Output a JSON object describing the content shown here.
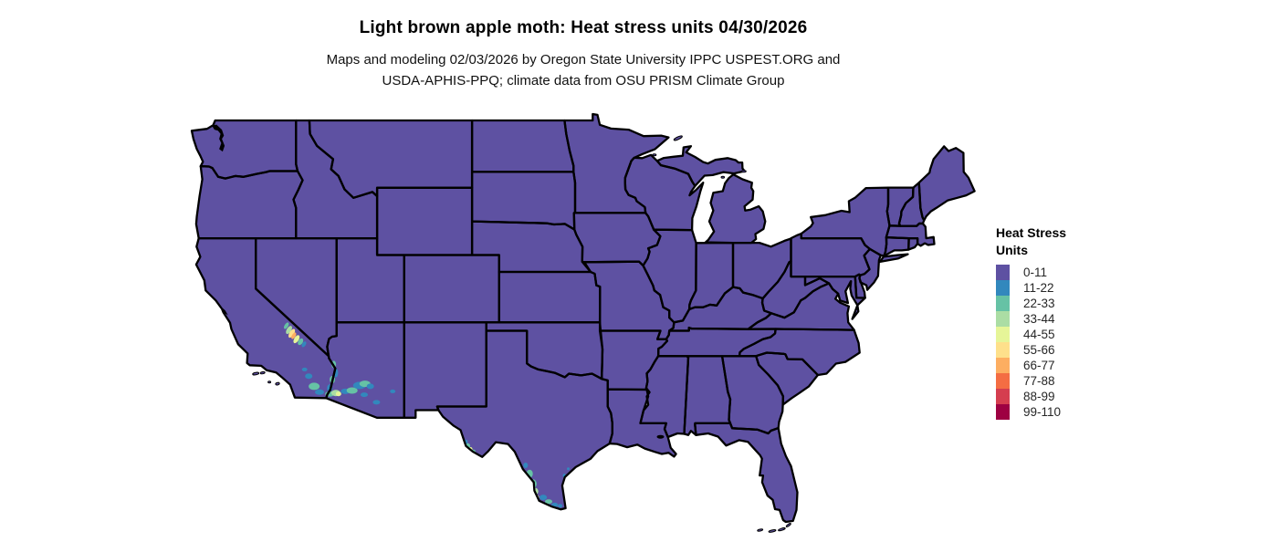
{
  "title": "Light brown apple moth: Heat stress units 04/30/2026",
  "subtitle": {
    "line1": "Maps and modeling 02/03/2026 by Oregon State University IPPC USPEST.ORG and",
    "line2": "USDA-APHIS-PPQ; climate data from OSU PRISM Climate Group"
  },
  "legend": {
    "title_line1": "Heat Stress",
    "title_line2": "Units",
    "classes": [
      {
        "label": "0-11",
        "color": "#5e51a2"
      },
      {
        "label": "11-22",
        "color": "#3288bd"
      },
      {
        "label": "22-33",
        "color": "#66c2a5"
      },
      {
        "label": "33-44",
        "color": "#abdda4"
      },
      {
        "label": "44-55",
        "color": "#e6f598"
      },
      {
        "label": "55-66",
        "color": "#fee08b"
      },
      {
        "label": "66-77",
        "color": "#fdae61"
      },
      {
        "label": "77-88",
        "color": "#f46d43"
      },
      {
        "label": "88-99",
        "color": "#d53e4f"
      },
      {
        "label": "99-110",
        "color": "#9e0142"
      }
    ]
  },
  "map": {
    "region": "contiguous United States",
    "base_class": "0-11",
    "base_fill": "#5e51a2",
    "border_color": "#000000",
    "water_color": "#000000",
    "background": "#ffffff"
  },
  "chart_data": {
    "type": "heatmap",
    "subtype": "choropleth-raster-map",
    "title": "Light brown apple moth: Heat stress units 04/30/2026",
    "units": "Heat Stress Units",
    "bins": [
      "0-11",
      "11-22",
      "22-33",
      "33-44",
      "44-55",
      "55-66",
      "66-77",
      "77-88",
      "88-99",
      "99-110"
    ],
    "bin_colors": [
      "#5e51a2",
      "#3288bd",
      "#66c2a5",
      "#abdda4",
      "#e6f598",
      "#fee08b",
      "#fdae61",
      "#f46d43",
      "#d53e4f",
      "#9e0142"
    ],
    "dominant_bin": "0-11",
    "hotspots": [
      {
        "area": "Death Valley region, eastern California",
        "approx_range": "22-77"
      },
      {
        "area": "Imperial Valley / southeastern California deserts",
        "approx_range": "11-33"
      },
      {
        "area": "Lower Colorado River / Yuma, AZ-CA border",
        "approx_range": "11-55"
      },
      {
        "area": "Phoenix-Tucson corridor, southern Arizona",
        "approx_range": "11-33"
      },
      {
        "area": "Big Bend / Presidio, west Texas",
        "approx_range": "22-55"
      },
      {
        "area": "Lower Rio Grande Valley, south Texas",
        "approx_range": "11-66"
      }
    ],
    "legend_position": "right"
  }
}
